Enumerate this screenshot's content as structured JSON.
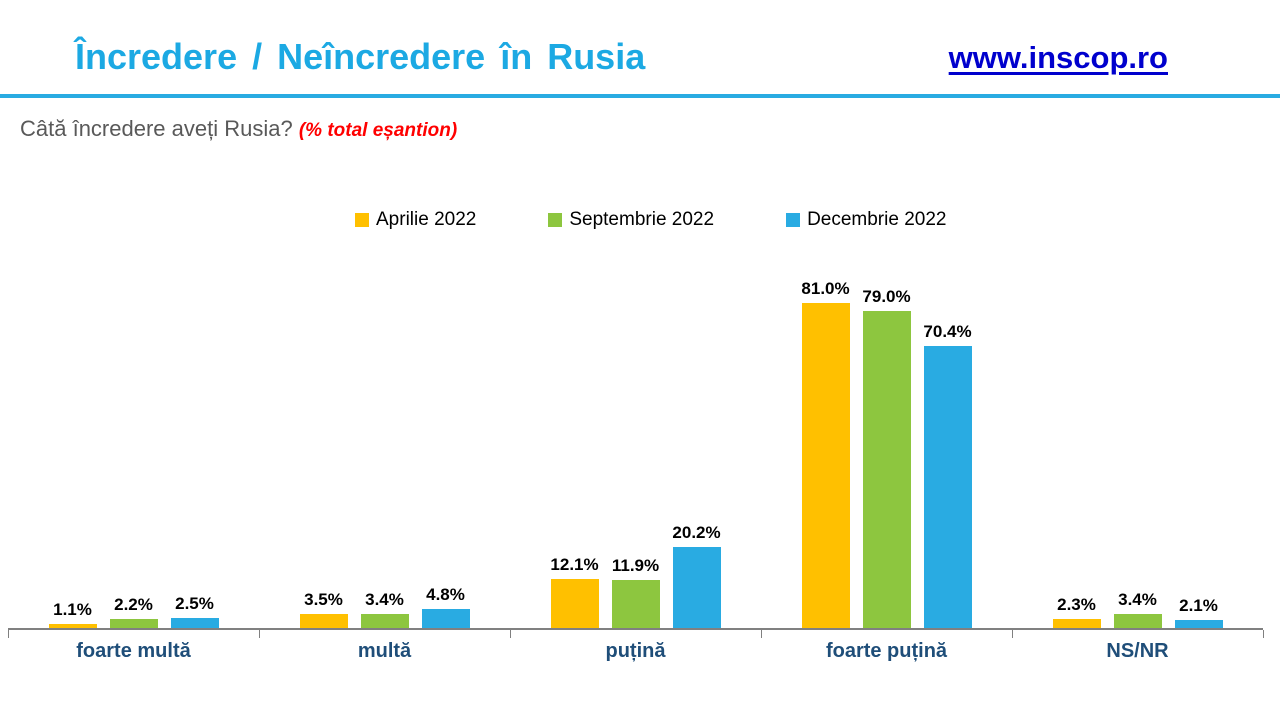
{
  "header": {
    "title": "Încredere / Neîncredere în Rusia",
    "link": "www.inscop.ro"
  },
  "question": {
    "text": "Câtă încredere aveți Rusia?",
    "note": "(% total eșantion)"
  },
  "colors": {
    "accent_cyan": "#29ABE2",
    "link_blue": "#0000CD",
    "question_gray": "#595959",
    "note_red": "#FF0000",
    "category_label_blue": "#1F4E79",
    "value_label_black": "#000000",
    "axis_gray": "#808080",
    "series_orange": "#FFC000",
    "series_green": "#8DC63F",
    "series_blue": "#29ABE2"
  },
  "chart_data": {
    "type": "bar",
    "title": "Câtă încredere aveți Rusia? (% total eșantion)",
    "categories": [
      "foarte multă",
      "multă",
      "puțină",
      "foarte puțină",
      "NS/NR"
    ],
    "series": [
      {
        "name": "Aprilie 2022",
        "color": "#FFC000",
        "values": [
          1.1,
          3.5,
          12.1,
          81.0,
          2.3
        ]
      },
      {
        "name": "Septembrie 2022",
        "color": "#8DC63F",
        "values": [
          2.2,
          3.4,
          11.9,
          79.0,
          3.4
        ]
      },
      {
        "name": "Decembrie 2022",
        "color": "#29ABE2",
        "values": [
          2.5,
          4.8,
          20.2,
          70.4,
          2.1
        ]
      }
    ],
    "value_suffix": "%",
    "value_label_format": "one_decimal",
    "xlabel": "",
    "ylabel": "",
    "ylim": [
      0,
      85
    ],
    "grid": false,
    "legend_position": "top"
  }
}
